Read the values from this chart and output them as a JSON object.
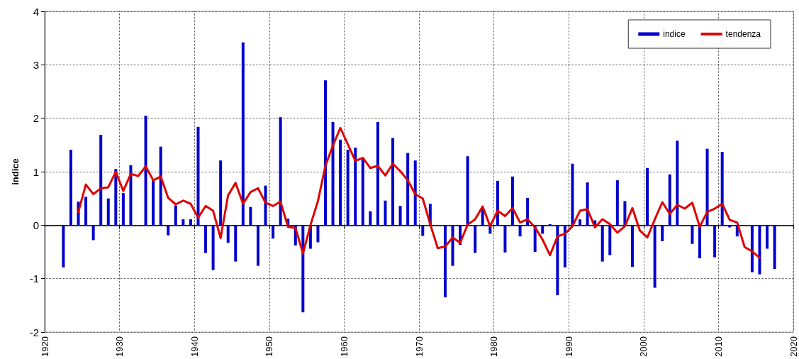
{
  "chart_data": {
    "type": "bar",
    "ylabel": "indice",
    "xlim": [
      1920,
      2020
    ],
    "xticks": [
      1920,
      1930,
      1940,
      1950,
      1960,
      1970,
      1980,
      1990,
      2000,
      2010,
      2020
    ],
    "ylim": [
      -2,
      4
    ],
    "yticks": [
      -2,
      -1,
      0,
      1,
      2,
      3,
      4
    ],
    "grid": true,
    "legend": "top right",
    "marker": "none",
    "line_style": "solid",
    "series": [
      {
        "name": "indice",
        "color": "#0000cc",
        "x": [
          1922.5,
          1923.5,
          1924.5,
          1925.5,
          1926.5,
          1927.5,
          1928.5,
          1929.5,
          1930.5,
          1931.5,
          1932.5,
          1933.5,
          1934.5,
          1935.5,
          1936.5,
          1937.5,
          1938.5,
          1939.5,
          1940.5,
          1941.5,
          1942.5,
          1943.5,
          1944.5,
          1945.5,
          1946.5,
          1947.5,
          1948.5,
          1949.5,
          1950.5,
          1951.5,
          1952.5,
          1953.5,
          1954.5,
          1955.5,
          1956.5,
          1957.5,
          1958.5,
          1959.5,
          1960.5,
          1961.5,
          1962.5,
          1963.5,
          1964.5,
          1965.5,
          1966.5,
          1967.5,
          1968.5,
          1969.5,
          1970.5,
          1971.5,
          1972.5,
          1973.5,
          1974.5,
          1975.5,
          1976.5,
          1977.5,
          1978.5,
          1979.5,
          1980.5,
          1981.5,
          1982.5,
          1983.5,
          1984.5,
          1985.5,
          1986.5,
          1987.5,
          1988.5,
          1989.5,
          1990.5,
          1991.5,
          1992.5,
          1993.5,
          1994.5,
          1995.5,
          1996.5,
          1997.5,
          1998.5,
          1999.5,
          2000.5,
          2001.5,
          2002.5,
          2003.5,
          2004.5,
          2005.5,
          2006.5,
          2007.5,
          2008.5,
          2009.5,
          2010.5,
          2011.5,
          2012.5,
          2013.5,
          2014.5,
          2015.5,
          2016.5,
          2017.5
        ],
        "values": [
          -0.79,
          1.41,
          0.44,
          0.53,
          -0.28,
          1.69,
          0.5,
          1.05,
          0.6,
          1.12,
          -0.01,
          2.05,
          0.84,
          1.47,
          -0.19,
          0.37,
          0.11,
          0.11,
          1.84,
          -0.52,
          -0.84,
          1.21,
          -0.33,
          -0.68,
          3.42,
          0.34,
          -0.76,
          0.74,
          -0.25,
          2.02,
          0.12,
          -0.38,
          -1.63,
          -0.44,
          -0.32,
          2.71,
          1.93,
          1.6,
          1.41,
          1.45,
          1.24,
          0.26,
          1.93,
          0.46,
          1.63,
          0.36,
          1.35,
          1.21,
          -0.2,
          0.4,
          0,
          -1.35,
          -0.76,
          -0.37,
          1.29,
          -0.52,
          0.33,
          -0.16,
          0.83,
          -0.51,
          0.91,
          -0.21,
          0.51,
          -0.5,
          -0.16,
          0.02,
          -1.31,
          -0.79,
          1.15,
          0.11,
          0.8,
          0.09,
          -0.68,
          -0.56,
          0.84,
          0.45,
          -0.78,
          0,
          1.07,
          -1.17,
          -0.3,
          0.95,
          1.58,
          -0.01,
          -0.35,
          -0.62,
          1.43,
          -0.6,
          1.37,
          -0.04,
          -0.21,
          0,
          -0.88,
          -0.92,
          -0.44,
          -0.82
        ]
      },
      {
        "name": "tendenza",
        "type": "line",
        "color": "#e00000",
        "x": [
          1924.5,
          1925.5,
          1926.5,
          1927.5,
          1928.5,
          1929.5,
          1930.5,
          1931.5,
          1932.5,
          1933.5,
          1934.5,
          1935.5,
          1936.5,
          1937.5,
          1938.5,
          1939.5,
          1940.5,
          1941.5,
          1942.5,
          1943.5,
          1944.5,
          1945.5,
          1946.5,
          1947.5,
          1948.5,
          1949.5,
          1950.5,
          1951.5,
          1952.5,
          1953.5,
          1954.5,
          1955.5,
          1956.5,
          1957.5,
          1958.5,
          1959.5,
          1960.5,
          1961.5,
          1962.5,
          1963.5,
          1964.5,
          1965.5,
          1966.5,
          1967.5,
          1968.5,
          1969.5,
          1970.5,
          1971.5,
          1972.5,
          1973.5,
          1974.5,
          1975.5,
          1976.5,
          1977.5,
          1978.5,
          1979.5,
          1980.5,
          1981.5,
          1982.5,
          1983.5,
          1984.5,
          1985.5,
          1986.5,
          1987.5,
          1988.5,
          1989.5,
          1990.5,
          1991.5,
          1992.5,
          1993.5,
          1994.5,
          1995.5,
          1996.5,
          1997.5,
          1998.5,
          1999.5,
          2000.5,
          2001.5,
          2002.5,
          2003.5,
          2004.5,
          2005.5,
          2006.5,
          2007.5,
          2008.5,
          2009.5,
          2010.5,
          2011.5,
          2012.5,
          2013.5,
          2014.5,
          2015.5
        ],
        "values": [
          0.25,
          0.76,
          0.58,
          0.69,
          0.71,
          1.0,
          0.64,
          0.96,
          0.92,
          1.1,
          0.84,
          0.91,
          0.51,
          0.39,
          0.46,
          0.4,
          0.14,
          0.36,
          0.27,
          -0.24,
          0.56,
          0.79,
          0.4,
          0.62,
          0.69,
          0.42,
          0.36,
          0.44,
          -0.03,
          -0.05,
          -0.53,
          0.0,
          0.45,
          1.11,
          1.49,
          1.82,
          1.51,
          1.2,
          1.26,
          1.07,
          1.11,
          0.93,
          1.15,
          1.01,
          0.84,
          0.58,
          0.5,
          0.02,
          -0.43,
          -0.4,
          -0.23,
          -0.33,
          0.01,
          0.11,
          0.35,
          -0.02,
          0.27,
          0.17,
          0.32,
          0.05,
          0.11,
          -0.04,
          -0.27,
          -0.56,
          -0.21,
          -0.16,
          -0.02,
          0.27,
          0.3,
          -0.04,
          0.11,
          0.02,
          -0.14,
          -0.02,
          0.32,
          -0.1,
          -0.23,
          0.11,
          0.43,
          0.21,
          0.38,
          0.31,
          0.42,
          -0.03,
          0.25,
          0.31,
          0.4,
          0.1,
          0.05,
          -0.41,
          -0.49,
          -0.61
        ]
      }
    ]
  }
}
